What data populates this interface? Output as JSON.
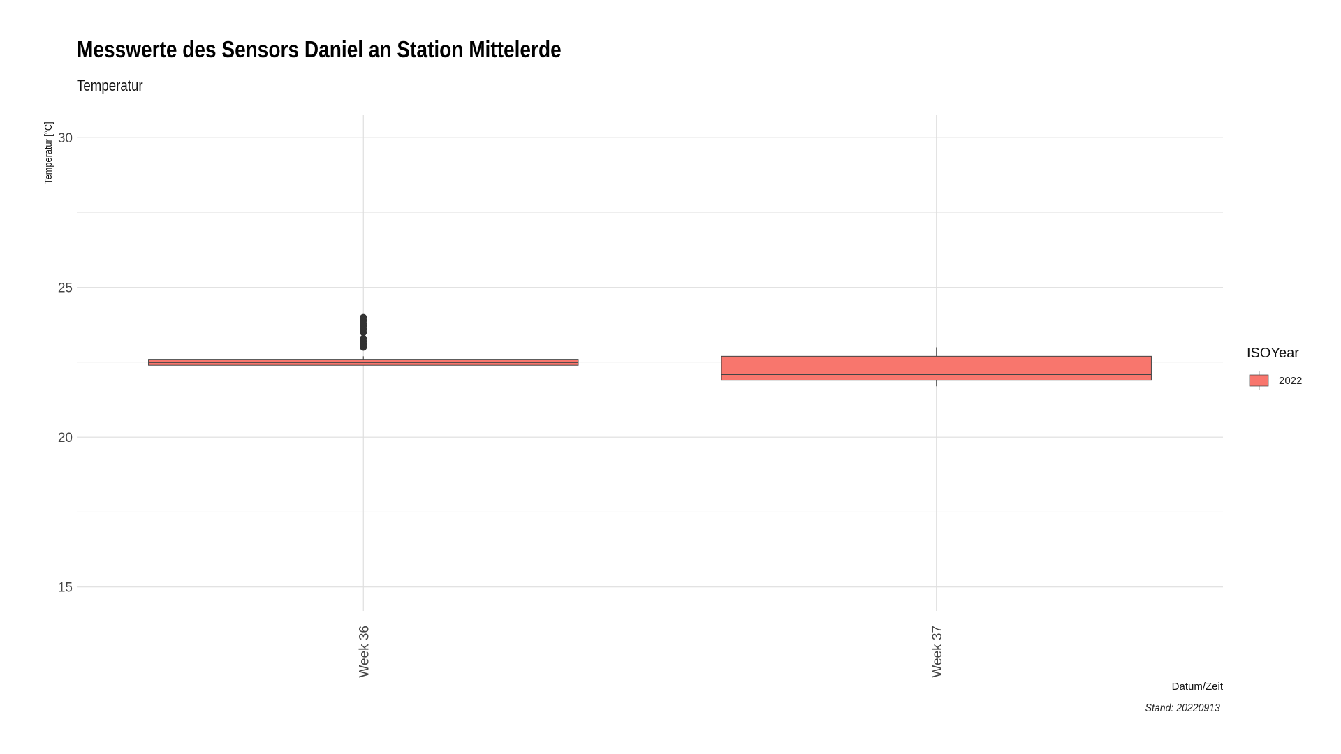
{
  "chart_data": {
    "type": "boxplot",
    "title": "Messwerte des Sensors Daniel an Station Mittelerde",
    "subtitle": "Temperatur",
    "xlabel": "Datum/Zeit",
    "ylabel": "Temperatur [°C]",
    "caption": "Stand: 20220913",
    "ylim": [
      14.2,
      30.75
    ],
    "yticks": [
      15,
      20,
      25,
      30
    ],
    "grid": true,
    "legend": {
      "title": "ISOYear",
      "placement": "right",
      "entries": [
        {
          "label": "2022",
          "color": "#F8766D"
        }
      ]
    },
    "categories": [
      "Week 36",
      "Week 37"
    ],
    "boxes": [
      {
        "category": "Week 36",
        "min": 22.4,
        "q1": 22.4,
        "median": 22.5,
        "q3": 22.6,
        "max": 22.7,
        "outliers": [
          23.0,
          23.1,
          23.2,
          23.3,
          23.5,
          23.6,
          23.7,
          23.8,
          23.9,
          24.0
        ]
      },
      {
        "category": "Week 37",
        "min": 21.7,
        "q1": 21.9,
        "median": 22.1,
        "q3": 22.7,
        "max": 23.0,
        "outliers": []
      }
    ]
  }
}
